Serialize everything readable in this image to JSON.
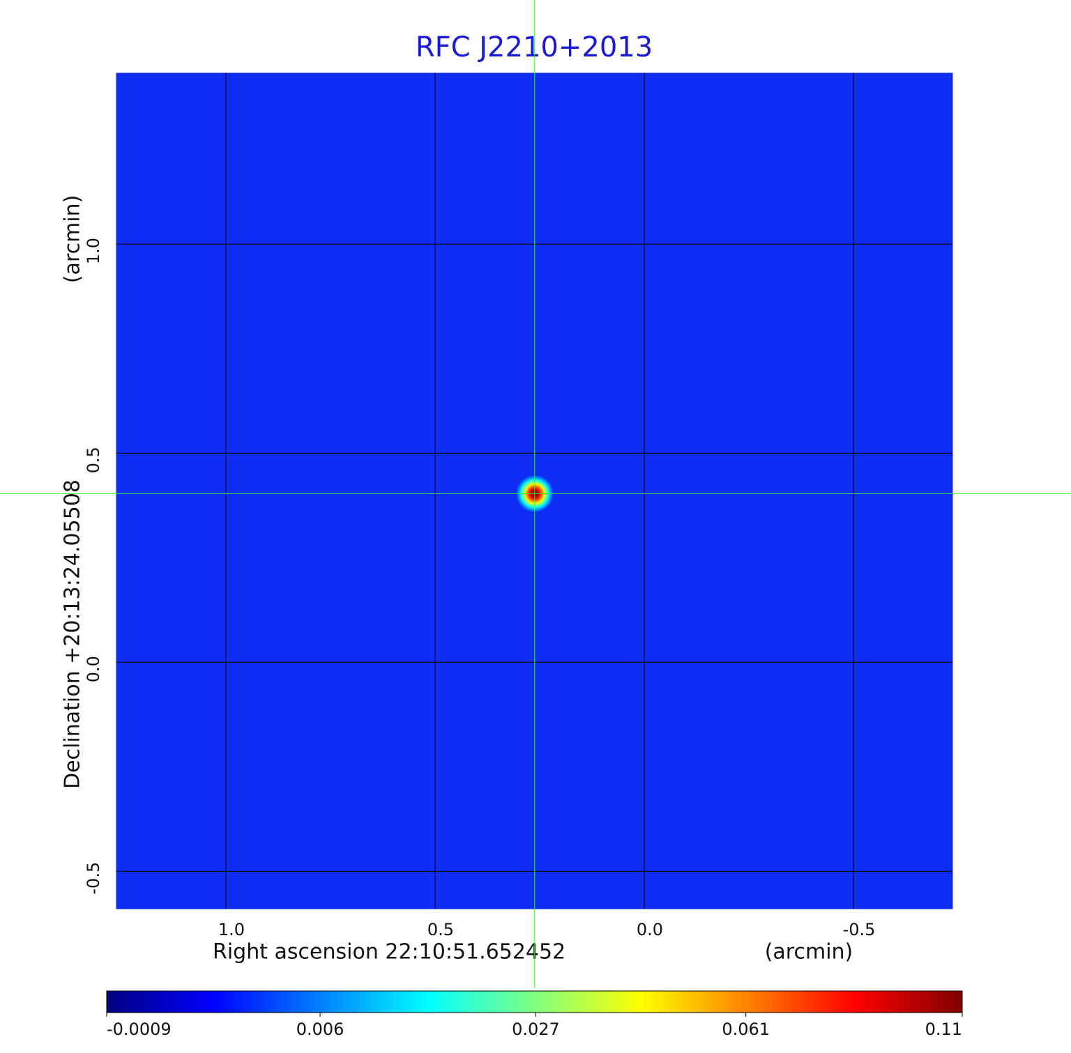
{
  "chart_data": {
    "type": "image",
    "title": "RFC J2210+2013",
    "xlabel": "Right ascension  22:10:51.652452",
    "xunit": "(arcmin)",
    "ylabel": "Declination  +20:13:24.05508",
    "yunit": "(arcmin)",
    "xlim": [
      1.265,
      -0.74
    ],
    "ylim": [
      -0.593,
      1.412
    ],
    "xticks": [
      {
        "value": 1,
        "label": "1.0"
      },
      0.5,
      {
        "value": 0,
        "label": "0.0"
      },
      -0.5
    ],
    "yticks": [
      -0.5,
      {
        "value": 0,
        "label": "0.0"
      },
      0.5,
      {
        "value": 1,
        "label": "1.0"
      }
    ],
    "grid": true,
    "colormap": "jet",
    "background_color": "#0f2cf2",
    "title_color": "#1a1ad6",
    "crosshair_color": "#33ee33",
    "source": {
      "x": 0.262,
      "y": 0.403,
      "peak": 0.11
    },
    "colorbar": {
      "scale": "sqrt",
      "lim": [
        -0.0009,
        0.11
      ],
      "ticks": [
        -0.0009,
        0.006,
        0.027,
        0.061,
        0.11
      ]
    }
  }
}
